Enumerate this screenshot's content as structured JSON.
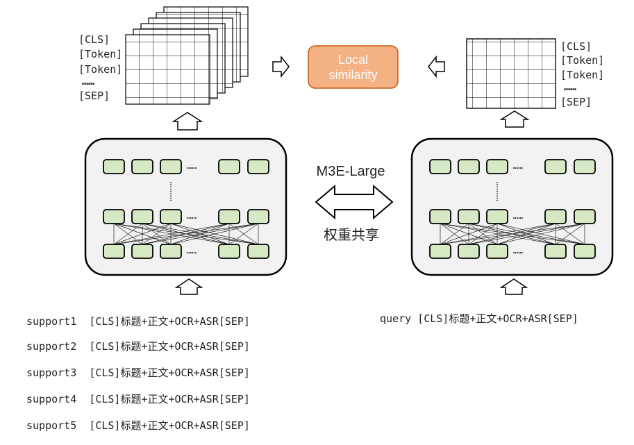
{
  "center": {
    "top_label": "M3E-Large",
    "bottom_label": "权重共享",
    "similarity_line1": "Local",
    "similarity_line2": "similarity"
  },
  "left_token_labels": [
    "[CLS]",
    "[Token]",
    "[Token]",
    "……",
    "[SEP]"
  ],
  "right_token_labels": [
    "[CLS]",
    "[Token]",
    "[Token]",
    "……",
    "[SEP]"
  ],
  "encoder": {
    "ellipsis": "……"
  },
  "support_inputs": [
    {
      "name": "support1",
      "text": "[CLS]标题+正文+OCR+ASR[SEP]"
    },
    {
      "name": "support2",
      "text": "[CLS]标题+正文+OCR+ASR[SEP]"
    },
    {
      "name": "support3",
      "text": "[CLS]标题+正文+OCR+ASR[SEP]"
    },
    {
      "name": "support4",
      "text": "[CLS]标题+正文+OCR+ASR[SEP]"
    },
    {
      "name": "support5",
      "text": "[CLS]标题+正文+OCR+ASR[SEP]"
    }
  ],
  "query_input": {
    "name": "query",
    "text": "[CLS]标题+正文+OCR+ASR[SEP]"
  },
  "colors": {
    "node_fill": "#d6e8c4",
    "box_fill": "#f2f2f2",
    "similarity_fill": "#f4b183",
    "similarity_stroke": "#c55a11"
  }
}
